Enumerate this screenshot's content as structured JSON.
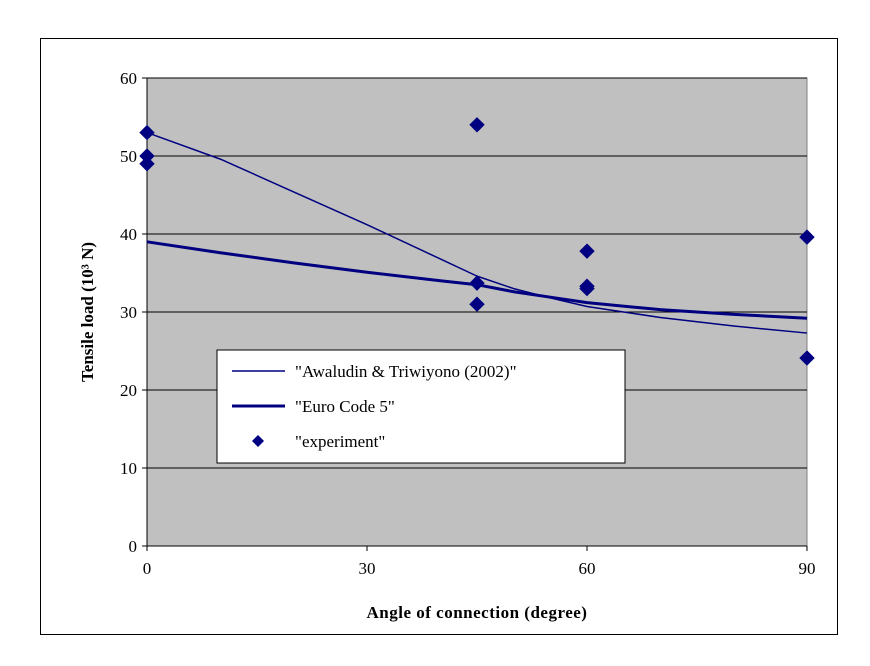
{
  "chart_data": {
    "type": "scatter",
    "xlabel": "Angle of connection (degree)",
    "ylabel": "Tensile load (10³ N)",
    "xlim": [
      0,
      90
    ],
    "ylim": [
      0,
      60
    ],
    "x_ticks": [
      "0",
      "30",
      "60",
      "90"
    ],
    "y_ticks": [
      "0",
      "10",
      "20",
      "30",
      "40",
      "50",
      "60"
    ],
    "grid": "horizontal",
    "plot_background": "#c0c0c0",
    "series_color": "#000080",
    "legend_position": "lower-left",
    "series": [
      {
        "name": "\"Awaludin & Triwiyono (2002)\"",
        "type": "line",
        "line_weight": "thin",
        "x": [
          0,
          10,
          20,
          30,
          40,
          45,
          50,
          55,
          60,
          70,
          80,
          90
        ],
        "y": [
          53,
          49.6,
          45.4,
          41.2,
          36.8,
          34.6,
          33.0,
          31.8,
          30.7,
          29.3,
          28.2,
          27.3
        ]
      },
      {
        "name": "\"Euro Code 5\"",
        "type": "line",
        "line_weight": "thick",
        "x": [
          0,
          10,
          20,
          30,
          40,
          45,
          50,
          55,
          60,
          70,
          80,
          90
        ],
        "y": [
          39,
          37.6,
          36.3,
          35.1,
          34.0,
          33.5,
          32.6,
          31.9,
          31.2,
          30.3,
          29.7,
          29.2
        ]
      },
      {
        "name": "\"experiment\"",
        "type": "scatter",
        "marker": "diamond",
        "x": [
          0,
          0,
          0,
          45,
          45,
          45,
          60,
          60,
          60,
          90,
          90
        ],
        "y": [
          53,
          50,
          49,
          54,
          33.7,
          31,
          37.8,
          33.3,
          33,
          39.6,
          24.1
        ]
      }
    ]
  }
}
